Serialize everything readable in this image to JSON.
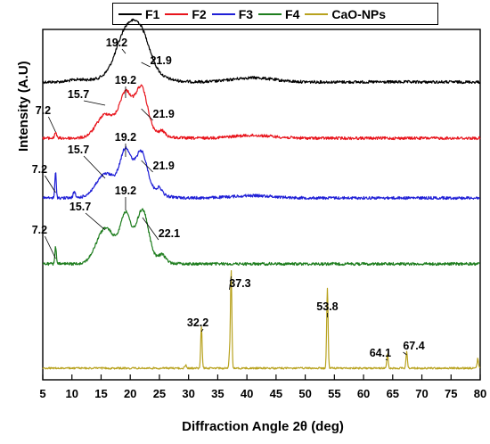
{
  "chart_data": {
    "type": "line",
    "xlabel": "Diffraction Angle 2θ (deg)",
    "ylabel": "Intensity (A.U)",
    "xlim": [
      5,
      80
    ],
    "xticks": [
      5,
      10,
      15,
      20,
      25,
      30,
      35,
      40,
      45,
      50,
      55,
      60,
      65,
      70,
      75,
      80
    ],
    "legend_position": "top",
    "series": [
      {
        "name": "F1",
        "color": "#000000",
        "peaks": [
          {
            "x": 19.2,
            "label": "19.2"
          },
          {
            "x": 21.9,
            "label": "21.9"
          }
        ]
      },
      {
        "name": "F2",
        "color": "#e8141c",
        "peaks": [
          {
            "x": 7.2,
            "label": "7.2"
          },
          {
            "x": 15.7,
            "label": "15.7"
          },
          {
            "x": 19.2,
            "label": "19.2"
          },
          {
            "x": 21.9,
            "label": "21.9"
          }
        ]
      },
      {
        "name": "F3",
        "color": "#1f1fd6",
        "peaks": [
          {
            "x": 7.2,
            "label": "7.2"
          },
          {
            "x": 15.7,
            "label": "15.7"
          },
          {
            "x": 19.2,
            "label": "19.2"
          },
          {
            "x": 21.9,
            "label": "21.9"
          }
        ]
      },
      {
        "name": "F4",
        "color": "#1e7d1e",
        "peaks": [
          {
            "x": 7.2,
            "label": "7.2"
          },
          {
            "x": 15.7,
            "label": "15.7"
          },
          {
            "x": 19.2,
            "label": "19.2"
          },
          {
            "x": 22.1,
            "label": "22.1"
          }
        ]
      },
      {
        "name": "CaO-NPs",
        "color": "#b8a21e",
        "peaks": [
          {
            "x": 32.2,
            "label": "32.2"
          },
          {
            "x": 37.3,
            "label": "37.3"
          },
          {
            "x": 53.8,
            "label": "53.8"
          },
          {
            "x": 64.1,
            "label": "64.1"
          },
          {
            "x": 67.4,
            "label": "67.4"
          }
        ]
      }
    ]
  }
}
